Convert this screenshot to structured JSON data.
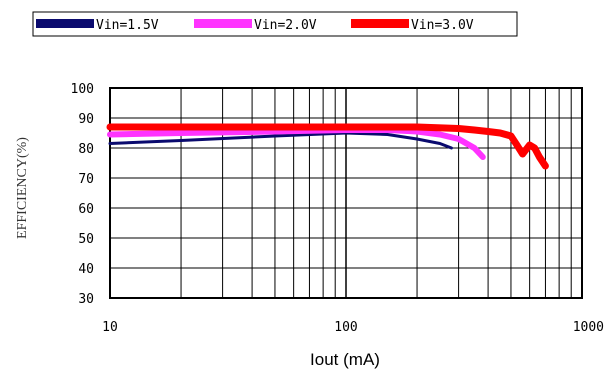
{
  "chart_data": {
    "type": "line",
    "xscale": "log",
    "xlim": [
      10,
      1000
    ],
    "ylim": [
      30,
      100
    ],
    "x_ticks": [
      "10",
      "100",
      "1000"
    ],
    "y_ticks": [
      "30",
      "40",
      "50",
      "60",
      "70",
      "80",
      "90",
      "100"
    ],
    "xlabel": "Iout (mA)",
    "ylabel": "EFFICIENCY(%)",
    "grid": true,
    "legend_position": "top-left",
    "series": [
      {
        "name": "Vin=1.5V",
        "color": "#0a0a6e",
        "x": [
          10,
          20,
          50,
          100,
          150,
          200,
          250,
          280
        ],
        "y": [
          81.5,
          82.5,
          84,
          85,
          84.5,
          83,
          81.5,
          80
        ]
      },
      {
        "name": "Vin=2.0V",
        "color": "#ff33ff",
        "x": [
          10,
          20,
          50,
          100,
          150,
          200,
          250,
          300,
          350,
          380
        ],
        "y": [
          84.5,
          85,
          85.5,
          86,
          86,
          85.5,
          84.5,
          83,
          80,
          77
        ]
      },
      {
        "name": "Vin=3.0V",
        "color": "#ff0000",
        "x": [
          10,
          20,
          50,
          100,
          200,
          300,
          350,
          400,
          450,
          500,
          530,
          560,
          600,
          630,
          660,
          700
        ],
        "y": [
          87,
          87,
          87,
          87,
          87,
          86.5,
          86,
          85.5,
          85,
          84,
          81,
          78,
          81,
          80,
          77,
          74
        ]
      }
    ]
  }
}
